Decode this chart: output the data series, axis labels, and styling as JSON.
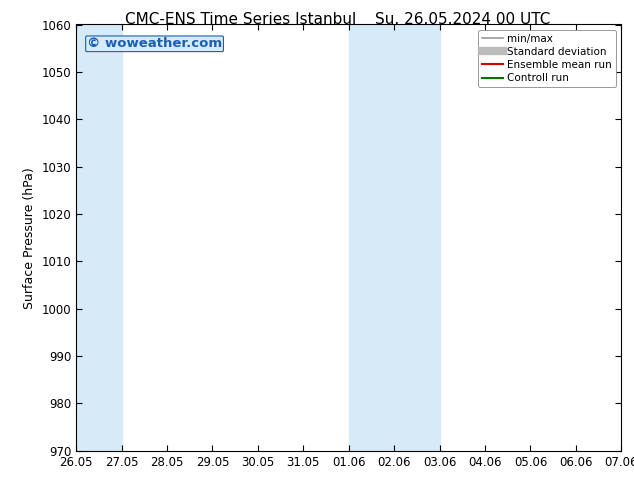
{
  "title_left": "CMC-ENS Time Series Istanbul",
  "title_right": "Su. 26.05.2024 00 UTC",
  "ylabel": "Surface Pressure (hPa)",
  "ylim": [
    970,
    1060
  ],
  "yticks": [
    970,
    980,
    990,
    1000,
    1010,
    1020,
    1030,
    1040,
    1050,
    1060
  ],
  "xlim_start": 0,
  "xlim_end": 12,
  "xtick_labels": [
    "26.05",
    "27.05",
    "28.05",
    "29.05",
    "30.05",
    "31.05",
    "01.06",
    "02.06",
    "03.06",
    "04.06",
    "05.06",
    "06.06",
    "07.06"
  ],
  "shaded_regions": [
    {
      "xstart": 0,
      "xend": 1,
      "color": "#d6eaf8"
    },
    {
      "xstart": 6,
      "xend": 7,
      "color": "#d6eaf8"
    },
    {
      "xstart": 7,
      "xend": 8,
      "color": "#d6eaf8"
    }
  ],
  "watermark_text": "© woweather.com",
  "watermark_color": "#1a5fb4",
  "legend_items": [
    {
      "label": "min/max",
      "color": "#999999",
      "lw": 1.2,
      "ls": "-"
    },
    {
      "label": "Standard deviation",
      "color": "#bbbbbb",
      "lw": 6,
      "ls": "-"
    },
    {
      "label": "Ensemble mean run",
      "color": "#dd0000",
      "lw": 1.5,
      "ls": "-"
    },
    {
      "label": "Controll run",
      "color": "#007700",
      "lw": 1.5,
      "ls": "-"
    }
  ],
  "bg_color": "#ffffff",
  "plot_bg_color": "#ffffff",
  "spine_color": "#000000",
  "title_fontsize": 11,
  "label_fontsize": 9,
  "tick_fontsize": 8.5,
  "watermark_fontsize": 9.5
}
